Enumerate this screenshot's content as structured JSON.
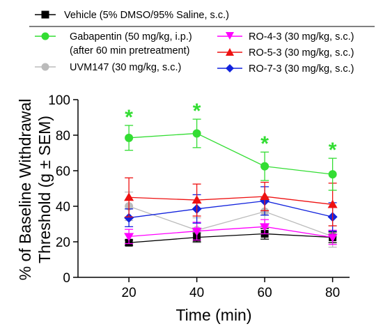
{
  "chart_data": {
    "type": "line",
    "xlabel": "Time (min)",
    "ylabel_lines": [
      "% of Baseline Withdrawal",
      "Threshold (g ± SEM)"
    ],
    "x": [
      20,
      40,
      60,
      80
    ],
    "xlim": [
      5,
      85
    ],
    "ylim": [
      0,
      100
    ],
    "xticks": [
      "20",
      "40",
      "60",
      "80"
    ],
    "yticks": [
      "0",
      "20",
      "40",
      "60",
      "80",
      "100"
    ],
    "grid": false,
    "legend_position": "top",
    "significance_marker": "*",
    "series": [
      {
        "name": "Vehicle (5% DMSO/95% Saline, s.c.)",
        "color": "#000000",
        "marker": "square",
        "values": [
          19.5,
          22.5,
          24.5,
          22.5
        ],
        "errors": [
          1.5,
          2.5,
          3,
          3
        ],
        "significant": [
          false,
          false,
          false,
          false
        ]
      },
      {
        "name": "Gabapentin (50 mg/kg, i.p.)",
        "name_line2": "(after 60 min pretreatment)",
        "color": "#33dd33",
        "marker": "circle",
        "values": [
          78.5,
          81,
          62.5,
          58
        ],
        "errors": [
          7,
          8,
          8,
          9
        ],
        "significant": [
          true,
          true,
          true,
          true
        ]
      },
      {
        "name": "UVM147 (30 mg/kg, s.c.)",
        "color": "#bbbbbb",
        "marker": "circle",
        "values": [
          40,
          26.5,
          37,
          23
        ],
        "errors": [
          8,
          7,
          8,
          6
        ],
        "significant": [
          false,
          false,
          false,
          false
        ]
      },
      {
        "name": "RO-4-3 (30 mg/kg, s.c.)",
        "color": "#ff00ff",
        "marker": "triangle-down",
        "values": [
          23,
          26,
          28.5,
          22.5
        ],
        "errors": [
          4,
          5,
          4,
          4
        ],
        "significant": [
          false,
          false,
          false,
          false
        ]
      },
      {
        "name": "RO-5-3 (30 mg/kg, s.c.)",
        "color": "#ee1111",
        "marker": "triangle-up",
        "values": [
          45,
          43.5,
          45.5,
          41
        ],
        "errors": [
          11,
          9,
          8,
          12
        ],
        "significant": [
          false,
          false,
          false,
          false
        ]
      },
      {
        "name": "RO-7-3 (30 mg/kg, s.c.)",
        "color": "#1122dd",
        "marker": "diamond",
        "values": [
          33.5,
          38.5,
          43,
          34
        ],
        "errors": [
          5,
          8,
          8,
          8
        ],
        "significant": [
          false,
          false,
          false,
          false
        ]
      }
    ]
  }
}
